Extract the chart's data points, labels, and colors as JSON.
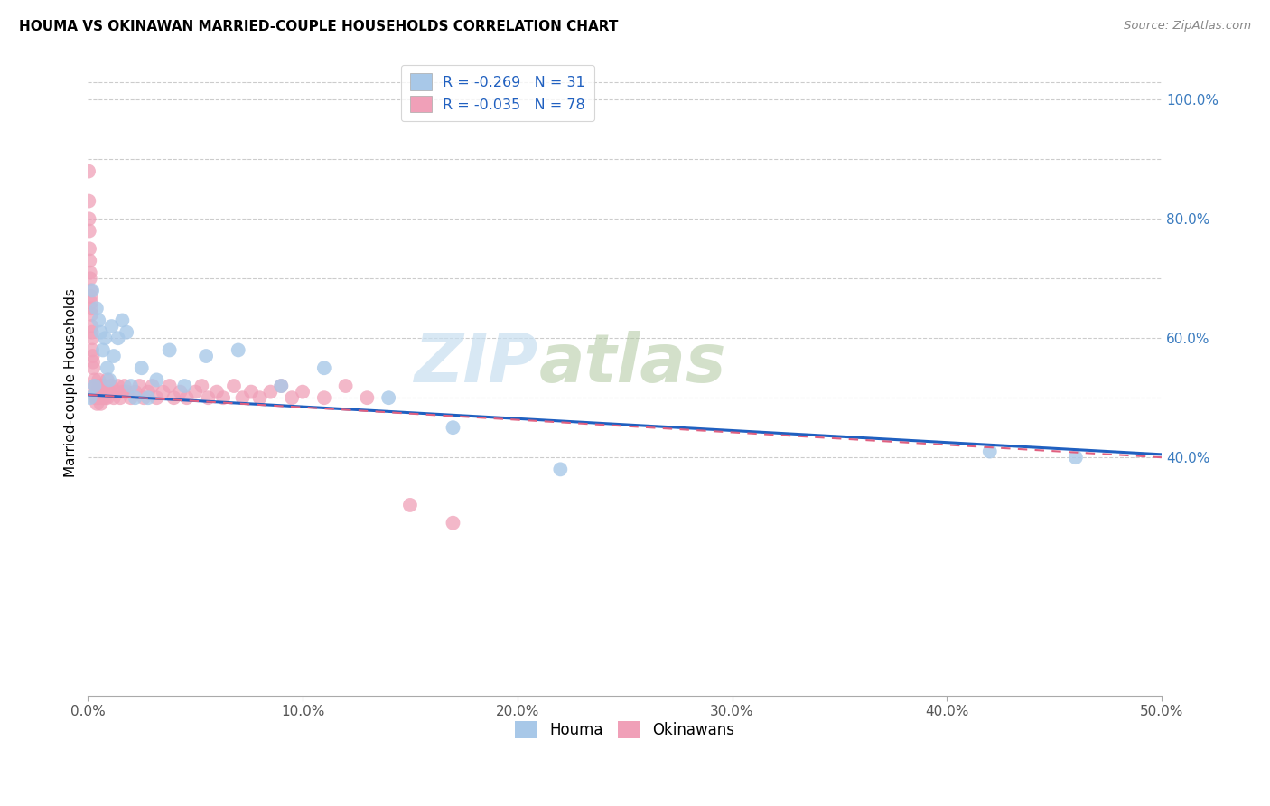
{
  "title": "HOUMA VS OKINAWAN MARRIED-COUPLE HOUSEHOLDS CORRELATION CHART",
  "source": "Source: ZipAtlas.com",
  "ylabel": "Married-couple Households",
  "right_yticks": [
    "100.0%",
    "80.0%",
    "60.0%",
    "40.0%"
  ],
  "right_ytick_values": [
    1.0,
    0.8,
    0.6,
    0.4
  ],
  "watermark_zip": "ZIP",
  "watermark_atlas": "atlas",
  "legend_houma": "R = -0.269   N = 31",
  "legend_okinawan": "R = -0.035   N = 78",
  "houma_color": "#a8c8e8",
  "okinawan_color": "#f0a0b8",
  "houma_line_color": "#2060c0",
  "okinawan_line_color": "#e06080",
  "houma_x": [
    0.001,
    0.002,
    0.003,
    0.004,
    0.005,
    0.006,
    0.007,
    0.008,
    0.009,
    0.01,
    0.011,
    0.012,
    0.014,
    0.016,
    0.018,
    0.02,
    0.022,
    0.025,
    0.028,
    0.032,
    0.038,
    0.045,
    0.055,
    0.07,
    0.09,
    0.11,
    0.14,
    0.17,
    0.22,
    0.42,
    0.46
  ],
  "houma_y": [
    0.5,
    0.68,
    0.52,
    0.65,
    0.63,
    0.61,
    0.58,
    0.6,
    0.55,
    0.53,
    0.62,
    0.57,
    0.6,
    0.63,
    0.61,
    0.52,
    0.5,
    0.55,
    0.5,
    0.53,
    0.58,
    0.52,
    0.57,
    0.58,
    0.52,
    0.55,
    0.5,
    0.45,
    0.38,
    0.41,
    0.4
  ],
  "okinawan_x": [
    0.0003,
    0.0004,
    0.0005,
    0.0006,
    0.0007,
    0.0008,
    0.001,
    0.001,
    0.0012,
    0.0013,
    0.0014,
    0.0015,
    0.0016,
    0.0017,
    0.0018,
    0.002,
    0.002,
    0.0022,
    0.0024,
    0.0025,
    0.003,
    0.003,
    0.0032,
    0.0034,
    0.004,
    0.004,
    0.0042,
    0.0045,
    0.005,
    0.005,
    0.0055,
    0.006,
    0.006,
    0.007,
    0.007,
    0.0075,
    0.008,
    0.009,
    0.009,
    0.01,
    0.011,
    0.012,
    0.013,
    0.014,
    0.015,
    0.016,
    0.017,
    0.018,
    0.02,
    0.022,
    0.024,
    0.026,
    0.028,
    0.03,
    0.032,
    0.035,
    0.038,
    0.04,
    0.043,
    0.046,
    0.05,
    0.053,
    0.056,
    0.06,
    0.063,
    0.068,
    0.072,
    0.076,
    0.08,
    0.085,
    0.09,
    0.095,
    0.1,
    0.11,
    0.12,
    0.13,
    0.15,
    0.17
  ],
  "okinawan_y": [
    0.88,
    0.83,
    0.8,
    0.78,
    0.75,
    0.73,
    0.71,
    0.7,
    0.68,
    0.67,
    0.66,
    0.65,
    0.64,
    0.62,
    0.61,
    0.6,
    0.58,
    0.57,
    0.56,
    0.55,
    0.53,
    0.52,
    0.51,
    0.5,
    0.52,
    0.5,
    0.49,
    0.51,
    0.53,
    0.5,
    0.51,
    0.52,
    0.49,
    0.51,
    0.5,
    0.52,
    0.5,
    0.53,
    0.5,
    0.51,
    0.52,
    0.5,
    0.51,
    0.52,
    0.5,
    0.51,
    0.52,
    0.51,
    0.5,
    0.51,
    0.52,
    0.5,
    0.51,
    0.52,
    0.5,
    0.51,
    0.52,
    0.5,
    0.51,
    0.5,
    0.51,
    0.52,
    0.5,
    0.51,
    0.5,
    0.52,
    0.5,
    0.51,
    0.5,
    0.51,
    0.52,
    0.5,
    0.51,
    0.5,
    0.52,
    0.5,
    0.32,
    0.29
  ],
  "xlim": [
    0.0,
    0.5
  ],
  "ylim": [
    0.0,
    1.05
  ],
  "background_color": "#ffffff",
  "grid_color": "#cccccc",
  "houma_line_x0": 0.0,
  "houma_line_y0": 0.505,
  "houma_line_x1": 0.5,
  "houma_line_y1": 0.405,
  "okinawan_line_x0": 0.0,
  "okinawan_line_y0": 0.505,
  "okinawan_line_x1": 0.5,
  "okinawan_line_y1": 0.4
}
